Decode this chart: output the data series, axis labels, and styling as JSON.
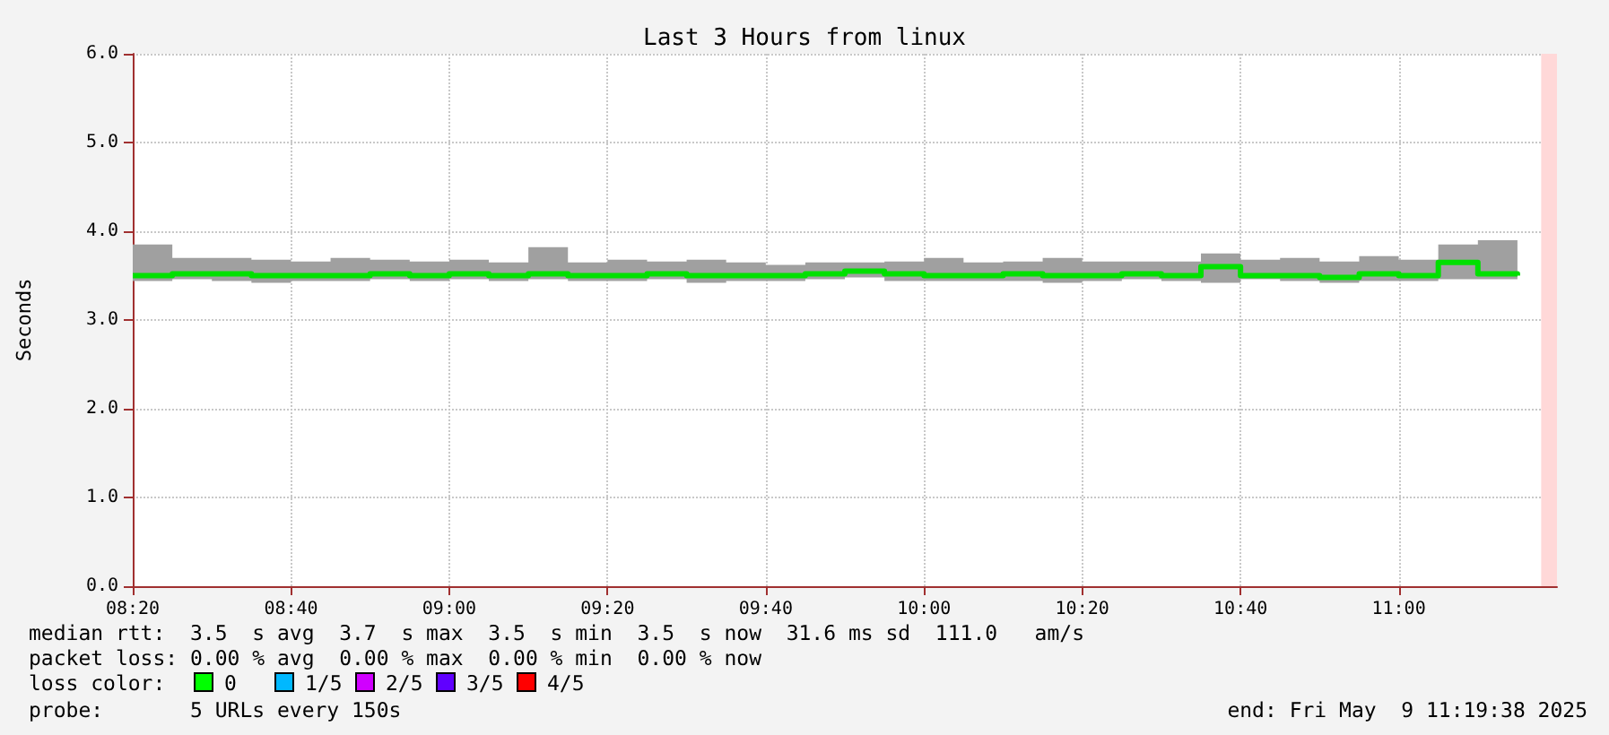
{
  "chart_data": {
    "type": "step",
    "title": "Last 3 Hours from linux",
    "ylabel": "Seconds",
    "x": [
      8.3333,
      8.4167,
      8.5,
      8.5833,
      8.6667,
      8.75,
      8.8333,
      8.9167,
      9,
      9.0833,
      9.1667,
      9.25,
      9.3333,
      9.4167,
      9.5,
      9.5833,
      9.6667,
      9.75,
      9.8333,
      9.9167,
      10,
      10.0833,
      10.1667,
      10.25,
      10.3333,
      10.4167,
      10.5,
      10.5833,
      10.6667,
      10.75,
      10.8333,
      10.9167,
      11,
      11.0833,
      11.1667,
      11.25
    ],
    "series": [
      {
        "color": "#00e000",
        "values": [
          3.5,
          3.52,
          3.52,
          3.5,
          3.5,
          3.5,
          3.52,
          3.5,
          3.52,
          3.5,
          3.52,
          3.5,
          3.5,
          3.52,
          3.5,
          3.5,
          3.5,
          3.52,
          3.55,
          3.52,
          3.5,
          3.5,
          3.52,
          3.5,
          3.5,
          3.52,
          3.5,
          3.6,
          3.5,
          3.5,
          3.48,
          3.52,
          3.5,
          3.65,
          3.52,
          3.5
        ],
        "lower": [
          3.44,
          3.46,
          3.44,
          3.42,
          3.44,
          3.44,
          3.46,
          3.44,
          3.46,
          3.44,
          3.46,
          3.44,
          3.44,
          3.46,
          3.42,
          3.44,
          3.44,
          3.46,
          3.48,
          3.44,
          3.44,
          3.44,
          3.44,
          3.42,
          3.44,
          3.46,
          3.44,
          3.42,
          3.46,
          3.44,
          3.42,
          3.44,
          3.44,
          3.46,
          3.46,
          3.44
        ],
        "upper": [
          3.85,
          3.7,
          3.7,
          3.68,
          3.66,
          3.7,
          3.68,
          3.66,
          3.68,
          3.65,
          3.82,
          3.65,
          3.68,
          3.66,
          3.68,
          3.65,
          3.62,
          3.65,
          3.65,
          3.66,
          3.7,
          3.65,
          3.66,
          3.7,
          3.66,
          3.66,
          3.66,
          3.75,
          3.68,
          3.7,
          3.66,
          3.72,
          3.68,
          3.85,
          3.9,
          3.8
        ]
      }
    ],
    "xlim": [
      8.3333,
      11.3333
    ],
    "xticks": [
      {
        "value": 8.3333,
        "label": "08:20"
      },
      {
        "value": 8.6667,
        "label": "08:40"
      },
      {
        "value": 9,
        "label": "09:00"
      },
      {
        "value": 9.3333,
        "label": "09:20"
      },
      {
        "value": 9.6667,
        "label": "09:40"
      },
      {
        "value": 10,
        "label": "10:00"
      },
      {
        "value": 10.3333,
        "label": "10:20"
      },
      {
        "value": 10.6667,
        "label": "10:40"
      },
      {
        "value": 11,
        "label": "11:00"
      }
    ],
    "ylim": [
      0,
      6
    ],
    "yticks": [
      {
        "value": 0,
        "label": "0.0"
      },
      {
        "value": 1,
        "label": "1.0"
      },
      {
        "value": 2,
        "label": "2.0"
      },
      {
        "value": 3,
        "label": "3.0"
      },
      {
        "value": 4,
        "label": "4.0"
      },
      {
        "value": 5,
        "label": "5.0"
      },
      {
        "value": 6,
        "label": "6.0"
      }
    ],
    "bands": [
      {
        "axis": "x",
        "from": 11.3,
        "to": 11.3333,
        "color": "#ffd8d8"
      }
    ],
    "grid": true,
    "annotations": [
      "median rtt:  3.5  s avg  3.7  s max  3.5  s min  3.5  s now  31.6 ms sd  111.0   am/s",
      "packet loss: 0.00 % avg  0.00 % max  0.00 % min  0.00 % now",
      "loss color:",
      "0",
      "1/5",
      "2/5",
      "3/5",
      "4/5",
      "probe:       5 URLs every 150s",
      "end: Fri May  9 11:19:38 2025"
    ]
  }
}
